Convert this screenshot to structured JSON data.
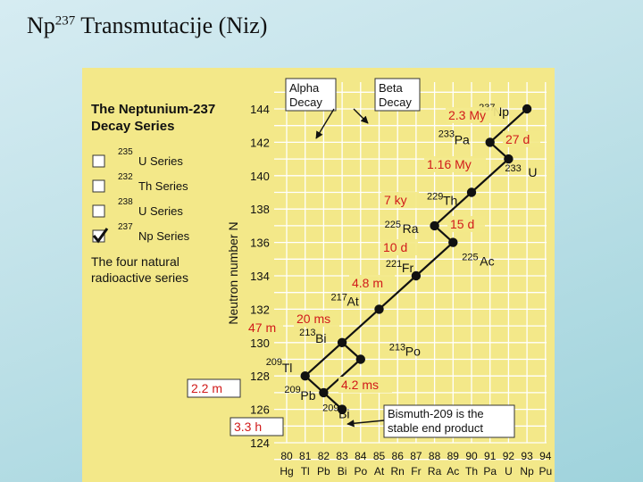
{
  "title": {
    "main": "Np",
    "superscript": "237",
    "rest": " Transmutacije (Niz)"
  },
  "figure": {
    "heading_line1": "The Neptunium-237",
    "heading_line2": "Decay Series",
    "legend": [
      {
        "mass": "235",
        "label": "U Series",
        "checked": false
      },
      {
        "mass": "232",
        "label": "Th Series",
        "checked": false
      },
      {
        "mass": "238",
        "label": "U Series",
        "checked": false
      },
      {
        "mass": "237",
        "label": "Np Series",
        "checked": true
      }
    ],
    "caption_line1": "The four natural",
    "caption_line2": "radioactive series",
    "alpha_box": [
      "Alpha",
      "Decay"
    ],
    "beta_box": [
      "Beta",
      "Decay"
    ],
    "stable_box": [
      "Bismuth-209 is the",
      "stable end product"
    ],
    "y_axis_label": "Neutron number N",
    "y_ticks": [
      "144",
      "142",
      "140",
      "138",
      "136",
      "134",
      "132",
      "130",
      "128",
      "126",
      "124"
    ],
    "x_ticks": [
      {
        "num": "80",
        "sym": "Hg"
      },
      {
        "num": "81",
        "sym": "Tl"
      },
      {
        "num": "82",
        "sym": "Pb"
      },
      {
        "num": "83",
        "sym": "Bi"
      },
      {
        "num": "84",
        "sym": "Po"
      },
      {
        "num": "85",
        "sym": "At"
      },
      {
        "num": "86",
        "sym": "Rn"
      },
      {
        "num": "87",
        "sym": "Fr"
      },
      {
        "num": "88",
        "sym": "Ra"
      },
      {
        "num": "89",
        "sym": "Ac"
      },
      {
        "num": "90",
        "sym": "Th"
      },
      {
        "num": "91",
        "sym": "Pa"
      },
      {
        "num": "92",
        "sym": "U"
      },
      {
        "num": "93",
        "sym": "Np"
      },
      {
        "num": "94",
        "sym": "Pu"
      }
    ],
    "nuclides": [
      {
        "mass": "237",
        "sym": "Np",
        "z": 93,
        "n": 144
      },
      {
        "mass": "233",
        "sym": "Pa",
        "z": 91,
        "n": 142
      },
      {
        "mass": "233",
        "sym": "U",
        "z": 92,
        "n": 141
      },
      {
        "mass": "229",
        "sym": "Th",
        "z": 90,
        "n": 139
      },
      {
        "mass": "225",
        "sym": "Ra",
        "z": 88,
        "n": 137
      },
      {
        "mass": "225",
        "sym": "Ac",
        "z": 89,
        "n": 136
      },
      {
        "mass": "221",
        "sym": "Fr",
        "z": 87,
        "n": 134
      },
      {
        "mass": "217",
        "sym": "At",
        "z": 85,
        "n": 132
      },
      {
        "mass": "213",
        "sym": "Bi",
        "z": 83,
        "n": 130
      },
      {
        "mass": "213",
        "sym": "Po",
        "z": 84,
        "n": 129
      },
      {
        "mass": "209",
        "sym": "Tl",
        "z": 81,
        "n": 128
      },
      {
        "mass": "209",
        "sym": "Pb",
        "z": 82,
        "n": 127
      },
      {
        "mass": "209",
        "sym": "Bi",
        "z": 83,
        "n": 126
      }
    ],
    "half_lives": [
      {
        "text": "2.3 My",
        "boxed": false
      },
      {
        "text": "27 d",
        "boxed": false
      },
      {
        "text": "1.16 My",
        "boxed": false
      },
      {
        "text": "7 ky",
        "boxed": false
      },
      {
        "text": "15 d",
        "boxed": false
      },
      {
        "text": "10 d",
        "boxed": false
      },
      {
        "text": "4.8 m",
        "boxed": false
      },
      {
        "text": "20 ms",
        "boxed": false
      },
      {
        "text": "47 m",
        "boxed": false
      },
      {
        "text": "4.2 ms",
        "boxed": false
      },
      {
        "text": "2.2 m",
        "boxed": true
      },
      {
        "text": "3.3 h",
        "boxed": true
      }
    ],
    "colors": {
      "background": "#f3e889",
      "half_life": "#d11a1a",
      "grid": "#ffffff",
      "ink": "#111111"
    }
  }
}
